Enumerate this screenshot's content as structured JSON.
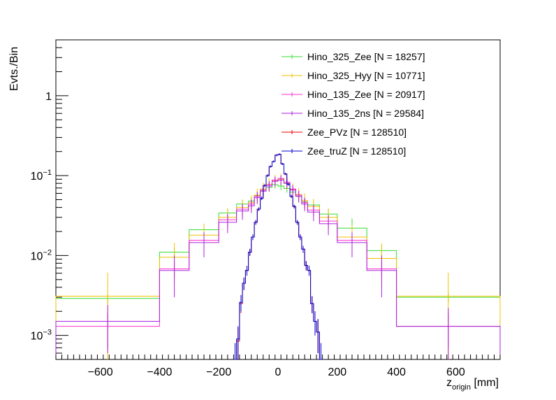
{
  "chart_data": {
    "type": "line",
    "style": "step-histogram-with-error-bars",
    "xlabel": "z",
    "xlabel_subscript": "origin",
    "xlabel_unit": " [mm]",
    "ylabel": "Evts./Bin",
    "xlim": [
      -750,
      750
    ],
    "ylim": [
      0.0005,
      5
    ],
    "y_scale": "log",
    "grid": false,
    "legend_position": "top-right",
    "x_ticks": [
      -600,
      -400,
      -200,
      0,
      200,
      400,
      600
    ],
    "x_tick_labels": [
      "−600",
      "−400",
      "−200",
      "0",
      "200",
      "400",
      "600"
    ],
    "y_ticks": [
      {
        "value": 0.001,
        "base": "10",
        "exp": "−3"
      },
      {
        "value": 0.01,
        "base": "10",
        "exp": "−2"
      },
      {
        "value": 0.1,
        "base": "10",
        "exp": "−1"
      },
      {
        "value": 1,
        "base": "1",
        "exp": ""
      }
    ],
    "series": [
      {
        "name": "Hino_325_Zee [N = 18257]",
        "color": "#33dd33",
        "edges": [
          -750,
          -400,
          -300,
          -200,
          -140,
          -100,
          -80,
          -60,
          -40,
          -20,
          0,
          20,
          40,
          60,
          80,
          100,
          140,
          200,
          300,
          400,
          750
        ],
        "values": [
          0.0029,
          0.011,
          0.021,
          0.034,
          0.044,
          0.048,
          0.056,
          0.064,
          0.071,
          0.077,
          0.074,
          0.069,
          0.062,
          0.055,
          0.047,
          0.043,
          0.033,
          0.022,
          0.0115,
          0.003
        ],
        "errors": [
          0.0004,
          0.0015,
          0.003,
          0.005,
          0.006,
          0.006,
          0.007,
          0.007,
          0.008,
          0.008,
          0.008,
          0.008,
          0.007,
          0.007,
          0.006,
          0.006,
          0.005,
          0.007,
          0.002,
          0.0004
        ]
      },
      {
        "name": "Hino_325_Hyy [N = 10771]",
        "color": "#f2c200",
        "edges": [
          -750,
          -400,
          -300,
          -200,
          -140,
          -100,
          -80,
          -60,
          -40,
          -20,
          0,
          20,
          40,
          60,
          80,
          100,
          140,
          200,
          300,
          400,
          750
        ],
        "values": [
          0.0031,
          0.0095,
          0.018,
          0.03,
          0.04,
          0.046,
          0.057,
          0.068,
          0.078,
          0.087,
          0.09,
          0.08,
          0.067,
          0.058,
          0.049,
          0.041,
          0.03,
          0.017,
          0.0092,
          0.0031
        ],
        "errors": [
          0.003,
          0.005,
          0.007,
          0.009,
          0.01,
          0.01,
          0.012,
          0.013,
          0.014,
          0.015,
          0.015,
          0.014,
          0.013,
          0.012,
          0.011,
          0.01,
          0.009,
          0.007,
          0.005,
          0.003
        ]
      },
      {
        "name": "Hino_135_Zee [N = 20917]",
        "color": "#ff33cc",
        "edges": [
          -750,
          -400,
          -300,
          -200,
          -140,
          -100,
          -80,
          -60,
          -40,
          -20,
          0,
          20,
          40,
          60,
          80,
          100,
          140,
          200,
          300,
          400,
          750
        ],
        "values": [
          0.0013,
          0.0068,
          0.0155,
          0.028,
          0.038,
          0.044,
          0.055,
          0.066,
          0.077,
          0.088,
          0.092,
          0.083,
          0.068,
          0.057,
          0.046,
          0.037,
          0.027,
          0.0155,
          0.0068,
          0.0013
        ],
        "errors": [
          0.0006,
          0.0015,
          0.003,
          0.005,
          0.006,
          0.006,
          0.007,
          0.008,
          0.008,
          0.009,
          0.009,
          0.009,
          0.008,
          0.008,
          0.007,
          0.006,
          0.005,
          0.003,
          0.0015,
          0.0006
        ]
      },
      {
        "name": "Hino_135_2ns [N = 29584]",
        "color": "#aa22dd",
        "edges": [
          -750,
          -400,
          -300,
          -200,
          -140,
          -100,
          -80,
          -60,
          -40,
          -20,
          0,
          20,
          40,
          60,
          80,
          100,
          140,
          200,
          300,
          400,
          750
        ],
        "values": [
          0.0015,
          0.0065,
          0.0145,
          0.026,
          0.036,
          0.042,
          0.053,
          0.064,
          0.074,
          0.085,
          0.088,
          0.08,
          0.066,
          0.055,
          0.044,
          0.035,
          0.025,
          0.0145,
          0.0065,
          0.0013
        ],
        "errors": [
          0.0009,
          0.0035,
          0.005,
          0.007,
          0.008,
          0.008,
          0.009,
          0.01,
          0.011,
          0.012,
          0.012,
          0.011,
          0.01,
          0.009,
          0.008,
          0.008,
          0.007,
          0.005,
          0.0035,
          0.0009
        ]
      },
      {
        "name": "Zee_PVz [N = 128510]",
        "color": "#ee0000",
        "edges": [
          -150,
          -140,
          -130,
          -120,
          -110,
          -100,
          -90,
          -80,
          -70,
          -60,
          -50,
          -40,
          -30,
          -20,
          -10,
          0,
          10,
          20,
          30,
          40,
          50,
          60,
          70,
          80,
          90,
          100,
          110,
          120,
          130,
          140,
          150
        ],
        "values": [
          0.0005,
          0.00085,
          0.0025,
          0.0045,
          0.0065,
          0.011,
          0.017,
          0.026,
          0.038,
          0.052,
          0.075,
          0.1,
          0.13,
          0.15,
          0.18,
          0.185,
          0.14,
          0.105,
          0.078,
          0.055,
          0.041,
          0.026,
          0.017,
          0.012,
          0.0075,
          0.0065,
          0.0025,
          0.0015,
          0.0011,
          0.0005
        ],
        "errors": [
          0.0003,
          0.0004,
          0.0006,
          0.0008,
          0.0009,
          0.0011,
          0.0014,
          0.0017,
          0.002,
          0.0025,
          0.003,
          0.0035,
          0.004,
          0.004,
          0.0045,
          0.0045,
          0.004,
          0.0035,
          0.003,
          0.0025,
          0.0022,
          0.0017,
          0.0014,
          0.0012,
          0.001,
          0.0009,
          0.0006,
          0.0005,
          0.0005,
          0.0003
        ]
      },
      {
        "name": "Zee_truZ [N = 128510]",
        "color": "#0000cc",
        "edges": [
          -150,
          -140,
          -130,
          -120,
          -110,
          -100,
          -90,
          -80,
          -70,
          -60,
          -50,
          -40,
          -30,
          -20,
          -10,
          0,
          10,
          20,
          30,
          40,
          50,
          60,
          70,
          80,
          90,
          100,
          110,
          120,
          130,
          140,
          150
        ],
        "values": [
          0.0005,
          0.0009,
          0.0026,
          0.0045,
          0.0065,
          0.011,
          0.017,
          0.026,
          0.038,
          0.052,
          0.075,
          0.1,
          0.13,
          0.15,
          0.18,
          0.185,
          0.14,
          0.105,
          0.078,
          0.055,
          0.041,
          0.026,
          0.017,
          0.012,
          0.0075,
          0.0065,
          0.0025,
          0.0015,
          0.0011,
          0.0005
        ],
        "errors": [
          0.0003,
          0.0004,
          0.0006,
          0.0008,
          0.0009,
          0.0011,
          0.0014,
          0.0017,
          0.002,
          0.0025,
          0.003,
          0.0035,
          0.004,
          0.004,
          0.0045,
          0.0045,
          0.004,
          0.0035,
          0.003,
          0.0025,
          0.0022,
          0.0017,
          0.0014,
          0.0012,
          0.001,
          0.0009,
          0.0006,
          0.0005,
          0.0005,
          0.0003
        ]
      }
    ]
  }
}
